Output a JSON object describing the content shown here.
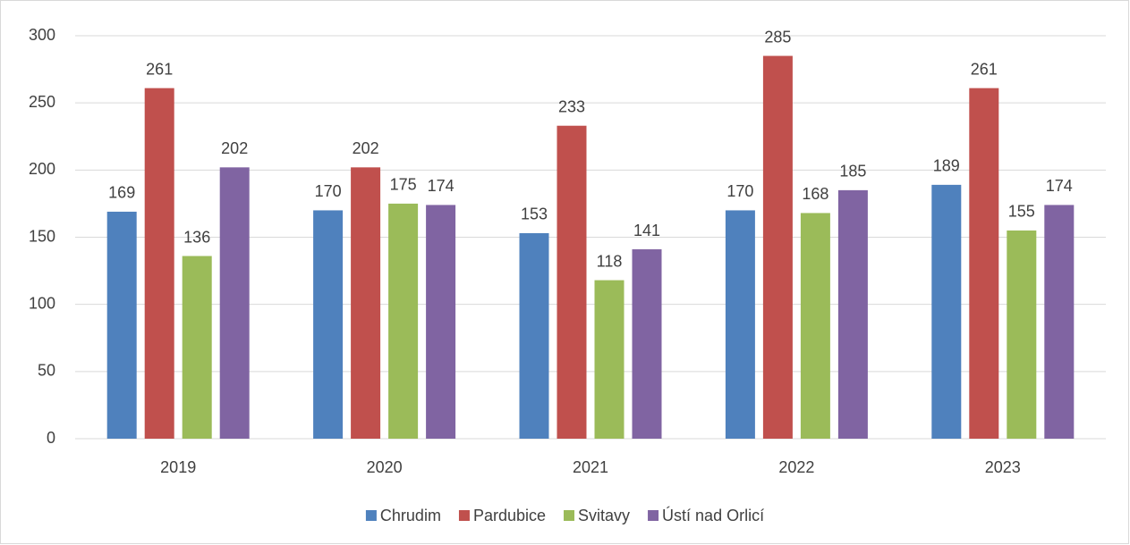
{
  "chart_data": {
    "type": "bar",
    "categories": [
      "2019",
      "2020",
      "2021",
      "2022",
      "2023"
    ],
    "series": [
      {
        "name": "Chrudim",
        "color": "#4f81bd",
        "values": [
          169,
          170,
          153,
          170,
          189
        ]
      },
      {
        "name": "Pardubice",
        "color": "#c0504d",
        "values": [
          261,
          202,
          233,
          285,
          261
        ]
      },
      {
        "name": "Svitavy",
        "color": "#9bbb59",
        "values": [
          136,
          175,
          118,
          168,
          155
        ]
      },
      {
        "name": "Ústí nad Orlicí",
        "color": "#8064a2",
        "values": [
          202,
          174,
          141,
          185,
          174
        ]
      }
    ],
    "ylim": [
      0,
      300
    ],
    "yticks": [
      0,
      50,
      100,
      150,
      200,
      250,
      300
    ],
    "grid": true,
    "data_labels": true,
    "legend": "bottom"
  }
}
